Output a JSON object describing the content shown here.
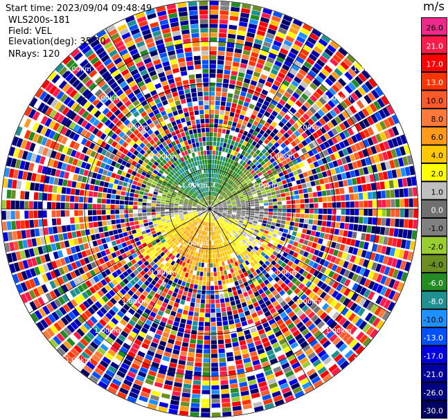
{
  "header": {
    "start_time": "Start time: 2023/09/04 09:48:49",
    "site": "WLS200s-181",
    "field": "Field: VEL",
    "elevation": "Elevation(deg): 35.30",
    "nrays": "NRays: 120"
  },
  "colorbar": {
    "unit": "m/s",
    "ticks": [
      "26.0",
      "21.0",
      "17.0",
      "13.0",
      "10.0",
      "8.0",
      "6.0",
      "4.0",
      "2.0",
      "1.0",
      "0.0",
      "-1.0",
      "-2.0",
      "-4.0",
      "-6.0",
      "-8.0",
      "-10.0",
      "-13.0",
      "-17.0",
      "-21.0",
      "-26.0",
      "-30.0"
    ],
    "colors": [
      "#f0288c",
      "#ff1a4a",
      "#ff0000",
      "#ff3300",
      "#ff5a2a",
      "#ff7a3a",
      "#ff9a1a",
      "#ffc800",
      "#ffff00",
      "#c0c0c0",
      "#707070",
      "#808080",
      "#9acd32",
      "#6b8e23",
      "#228b22",
      "#1f9090",
      "#1e90ff",
      "#0050ff",
      "#0000e0",
      "#0000a0",
      "#000080",
      "#000060"
    ]
  },
  "chart_data": {
    "type": "heatmap",
    "projection": "polar (PPI)",
    "n_rays": 120,
    "elevation_deg": 35.3,
    "field": "VEL",
    "units": "m/s",
    "range_rings": [
      "1.00km",
      "1.00km",
      "1.00km",
      "1.00km",
      "1.00km",
      "1.00km"
    ],
    "near_field_pattern": {
      "north_sector": "-8 to -2 m/s (blue/green)",
      "south_sector": "2 to 10 m/s (yellow/orange)"
    },
    "far_field": "noise, values spanning -30 to 26 m/s",
    "colormap_range": [
      -30.0,
      26.0
    ]
  }
}
